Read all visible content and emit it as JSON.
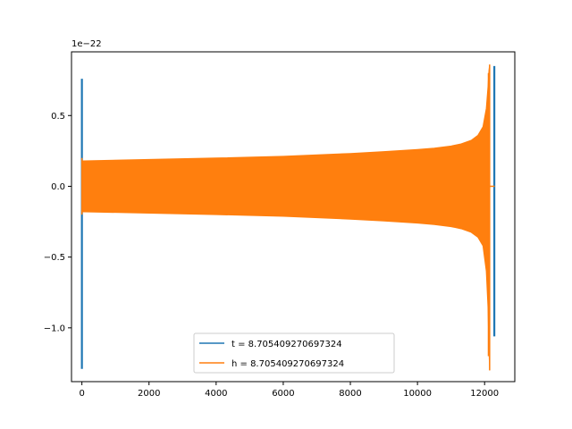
{
  "chart_data": {
    "type": "line",
    "title": "",
    "xlabel": "",
    "ylabel": "",
    "y_offset_label": "1e−22",
    "xlim": [
      -310,
      12900
    ],
    "ylim": [
      -1.38,
      0.95
    ],
    "x_ticks": [
      0,
      2000,
      4000,
      6000,
      8000,
      10000,
      12000
    ],
    "x_tick_labels": [
      "0",
      "2000",
      "4000",
      "6000",
      "8000",
      "10000",
      "12000"
    ],
    "y_ticks": [
      -1.0,
      -0.5,
      0.0,
      0.5
    ],
    "y_tick_labels": [
      "−1.0",
      "−0.5",
      "0.0",
      "0.5"
    ],
    "grid": false,
    "legend_position": "lower-center",
    "series": [
      {
        "name": "t = 8.705409270697324",
        "color": "#1f77b4",
        "spikes": [
          {
            "x": 0,
            "ymin": -1.29,
            "ymax": 0.76
          },
          {
            "x": 12290,
            "ymin": -1.06,
            "ymax": 0.85
          }
        ]
      },
      {
        "name": "h = 8.705409270697324",
        "color": "#ff7f0e",
        "envelope": {
          "x": [
            0,
            50,
            2000,
            4000,
            6000,
            8000,
            9000,
            10000,
            10500,
            11000,
            11300,
            11600,
            11800,
            11950,
            12050,
            12100,
            12130,
            12150
          ],
          "upper": [
            0.18,
            0.18,
            0.19,
            0.2,
            0.212,
            0.232,
            0.245,
            0.26,
            0.27,
            0.285,
            0.3,
            0.325,
            0.36,
            0.42,
            0.55,
            0.7,
            0.82,
            0.86
          ],
          "lower": [
            -0.18,
            -0.18,
            -0.19,
            -0.2,
            -0.212,
            -0.232,
            -0.245,
            -0.26,
            -0.27,
            -0.285,
            -0.3,
            -0.325,
            -0.36,
            -0.42,
            -0.6,
            -0.85,
            -1.15,
            -1.3
          ]
        },
        "ringdown_end_x": 12300
      }
    ]
  }
}
